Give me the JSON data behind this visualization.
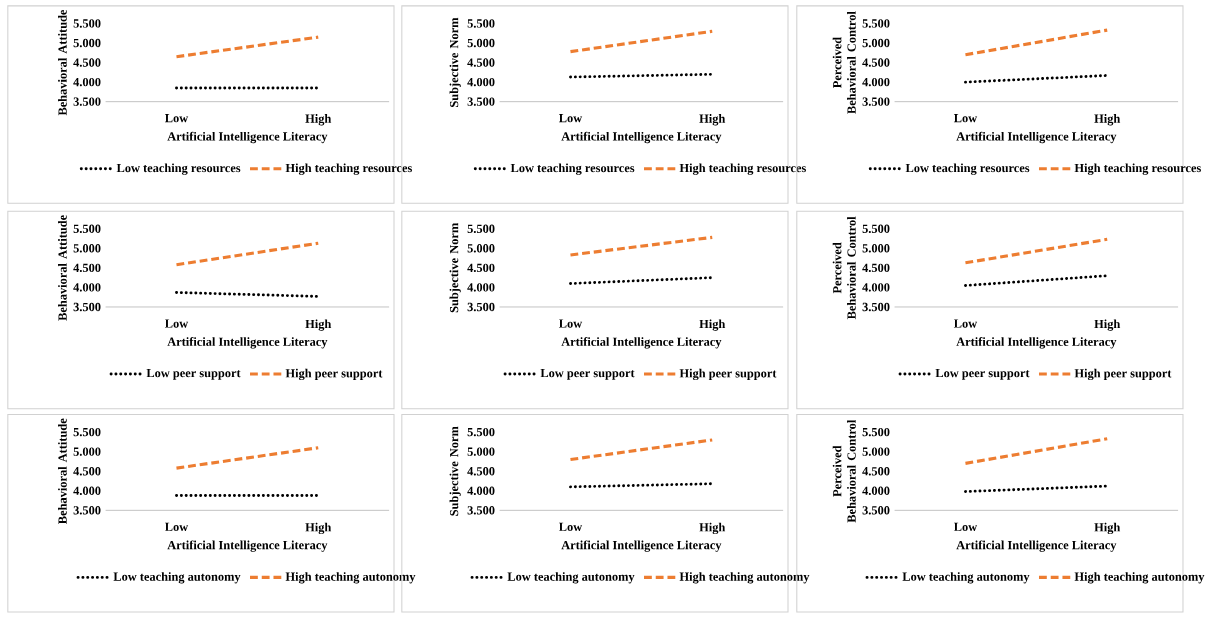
{
  "chart_data": [
    {
      "type": "line",
      "categories": [
        "Low",
        "High"
      ],
      "xlabel": "Artificial Intelligence Literacy",
      "ylabel": "Behavioral Attitude",
      "ylim": [
        3.5,
        5.5
      ],
      "yticks": [
        {
          "value": 3.5,
          "label": "3.500"
        },
        {
          "value": 4.0,
          "label": "4.000"
        },
        {
          "value": 4.5,
          "label": "4.500"
        },
        {
          "value": 5.0,
          "label": "5.000"
        },
        {
          "value": 5.5,
          "label": "5.500"
        }
      ],
      "legend": "bottom",
      "series": [
        {
          "name": "Low teaching resources",
          "color": "#000000",
          "line_style": "dotted",
          "values": [
            3.85,
            3.85
          ]
        },
        {
          "name": "High teaching resources",
          "color": "#ed7d31",
          "line_style": "dashed",
          "values": [
            4.65,
            5.15
          ]
        }
      ]
    },
    {
      "type": "line",
      "categories": [
        "Low",
        "High"
      ],
      "xlabel": "Artificial Intelligence Literacy",
      "ylabel": "Subjective Norm",
      "ylim": [
        3.5,
        5.5
      ],
      "yticks": [
        {
          "value": 3.5,
          "label": "3.500"
        },
        {
          "value": 4.0,
          "label": "4.000"
        },
        {
          "value": 4.5,
          "label": "4.500"
        },
        {
          "value": 5.0,
          "label": "5.000"
        },
        {
          "value": 5.5,
          "label": "5.500"
        }
      ],
      "legend": "bottom",
      "series": [
        {
          "name": "Low teaching resources",
          "color": "#000000",
          "line_style": "dotted",
          "values": [
            4.13,
            4.2
          ]
        },
        {
          "name": "High teaching resources",
          "color": "#ed7d31",
          "line_style": "dashed",
          "values": [
            4.78,
            5.3
          ]
        }
      ]
    },
    {
      "type": "line",
      "categories": [
        "Low",
        "High"
      ],
      "xlabel": "Artificial Intelligence Literacy",
      "ylabel": "Perceived Behavioral Control",
      "ylim": [
        3.5,
        5.5
      ],
      "yticks": [
        {
          "value": 3.5,
          "label": "3.500"
        },
        {
          "value": 4.0,
          "label": "4.000"
        },
        {
          "value": 4.5,
          "label": "4.500"
        },
        {
          "value": 5.0,
          "label": "5.000"
        },
        {
          "value": 5.5,
          "label": "5.500"
        }
      ],
      "legend": "bottom",
      "series": [
        {
          "name": "Low teaching resources",
          "color": "#000000",
          "line_style": "dotted",
          "values": [
            4.0,
            4.17
          ]
        },
        {
          "name": "High teaching resources",
          "color": "#ed7d31",
          "line_style": "dashed",
          "values": [
            4.7,
            5.33
          ]
        }
      ]
    },
    {
      "type": "line",
      "categories": [
        "Low",
        "High"
      ],
      "xlabel": "Artificial Intelligence Literacy",
      "ylabel": "Behavioral Attitude",
      "ylim": [
        3.5,
        5.5
      ],
      "yticks": [
        {
          "value": 3.5,
          "label": "3.500"
        },
        {
          "value": 4.0,
          "label": "4.000"
        },
        {
          "value": 4.5,
          "label": "4.500"
        },
        {
          "value": 5.0,
          "label": "5.000"
        },
        {
          "value": 5.5,
          "label": "5.500"
        }
      ],
      "legend": "bottom",
      "series": [
        {
          "name": "Low peer support",
          "color": "#000000",
          "line_style": "dotted",
          "values": [
            3.87,
            3.77
          ]
        },
        {
          "name": "High peer support",
          "color": "#ed7d31",
          "line_style": "dashed",
          "values": [
            4.58,
            5.13
          ]
        }
      ]
    },
    {
      "type": "line",
      "categories": [
        "Low",
        "High"
      ],
      "xlabel": "Artificial Intelligence Literacy",
      "ylabel": "Subjective Norm",
      "ylim": [
        3.5,
        5.5
      ],
      "yticks": [
        {
          "value": 3.5,
          "label": "3.500"
        },
        {
          "value": 4.0,
          "label": "4.000"
        },
        {
          "value": 4.5,
          "label": "4.500"
        },
        {
          "value": 5.0,
          "label": "5.000"
        },
        {
          "value": 5.5,
          "label": "5.500"
        }
      ],
      "legend": "bottom",
      "series": [
        {
          "name": "Low peer support",
          "color": "#000000",
          "line_style": "dotted",
          "values": [
            4.1,
            4.25
          ]
        },
        {
          "name": "High peer support",
          "color": "#ed7d31",
          "line_style": "dashed",
          "values": [
            4.83,
            5.28
          ]
        }
      ]
    },
    {
      "type": "line",
      "categories": [
        "Low",
        "High"
      ],
      "xlabel": "Artificial Intelligence Literacy",
      "ylabel": "Perceived Behavioral Control",
      "ylim": [
        3.5,
        5.5
      ],
      "yticks": [
        {
          "value": 3.5,
          "label": "3.500"
        },
        {
          "value": 4.0,
          "label": "4.000"
        },
        {
          "value": 4.5,
          "label": "4.500"
        },
        {
          "value": 5.0,
          "label": "5.000"
        },
        {
          "value": 5.5,
          "label": "5.500"
        }
      ],
      "legend": "bottom",
      "series": [
        {
          "name": "Low peer support",
          "color": "#000000",
          "line_style": "dotted",
          "values": [
            4.05,
            4.3
          ]
        },
        {
          "name": "High peer support",
          "color": "#ed7d31",
          "line_style": "dashed",
          "values": [
            4.63,
            5.23
          ]
        }
      ]
    },
    {
      "type": "line",
      "categories": [
        "Low",
        "High"
      ],
      "xlabel": "Artificial Intelligence Literacy",
      "ylabel": "Behavioral Attitude",
      "ylim": [
        3.5,
        5.5
      ],
      "yticks": [
        {
          "value": 3.5,
          "label": "3.500"
        },
        {
          "value": 4.0,
          "label": "4.000"
        },
        {
          "value": 4.5,
          "label": "4.500"
        },
        {
          "value": 5.0,
          "label": "5.000"
        },
        {
          "value": 5.5,
          "label": "5.500"
        }
      ],
      "legend": "bottom",
      "series": [
        {
          "name": "Low teaching autonomy",
          "color": "#000000",
          "line_style": "dotted",
          "values": [
            3.88,
            3.88
          ]
        },
        {
          "name": "High teaching autonomy",
          "color": "#ed7d31",
          "line_style": "dashed",
          "values": [
            4.58,
            5.1
          ]
        }
      ]
    },
    {
      "type": "line",
      "categories": [
        "Low",
        "High"
      ],
      "xlabel": "Artificial Intelligence Literacy",
      "ylabel": "Subjective Norm",
      "ylim": [
        3.5,
        5.5
      ],
      "yticks": [
        {
          "value": 3.5,
          "label": "3.500"
        },
        {
          "value": 4.0,
          "label": "4.000"
        },
        {
          "value": 4.5,
          "label": "4.500"
        },
        {
          "value": 5.0,
          "label": "5.000"
        },
        {
          "value": 5.5,
          "label": "5.500"
        }
      ],
      "legend": "bottom",
      "series": [
        {
          "name": "Low teaching autonomy",
          "color": "#000000",
          "line_style": "dotted",
          "values": [
            4.1,
            4.18
          ]
        },
        {
          "name": "High teaching autonomy",
          "color": "#ed7d31",
          "line_style": "dashed",
          "values": [
            4.8,
            5.3
          ]
        }
      ]
    },
    {
      "type": "line",
      "categories": [
        "Low",
        "High"
      ],
      "xlabel": "Artificial Intelligence Literacy",
      "ylabel": "Perceived Behavioral Control",
      "ylim": [
        3.5,
        5.5
      ],
      "yticks": [
        {
          "value": 3.5,
          "label": "3.500"
        },
        {
          "value": 4.0,
          "label": "4.000"
        },
        {
          "value": 4.5,
          "label": "4.500"
        },
        {
          "value": 5.0,
          "label": "5.000"
        },
        {
          "value": 5.5,
          "label": "5.500"
        }
      ],
      "legend": "bottom",
      "series": [
        {
          "name": "Low teaching autonomy",
          "color": "#000000",
          "line_style": "dotted",
          "values": [
            3.98,
            4.12
          ]
        },
        {
          "name": "High teaching autonomy",
          "color": "#ed7d31",
          "line_style": "dashed",
          "values": [
            4.7,
            5.33
          ]
        }
      ]
    }
  ]
}
